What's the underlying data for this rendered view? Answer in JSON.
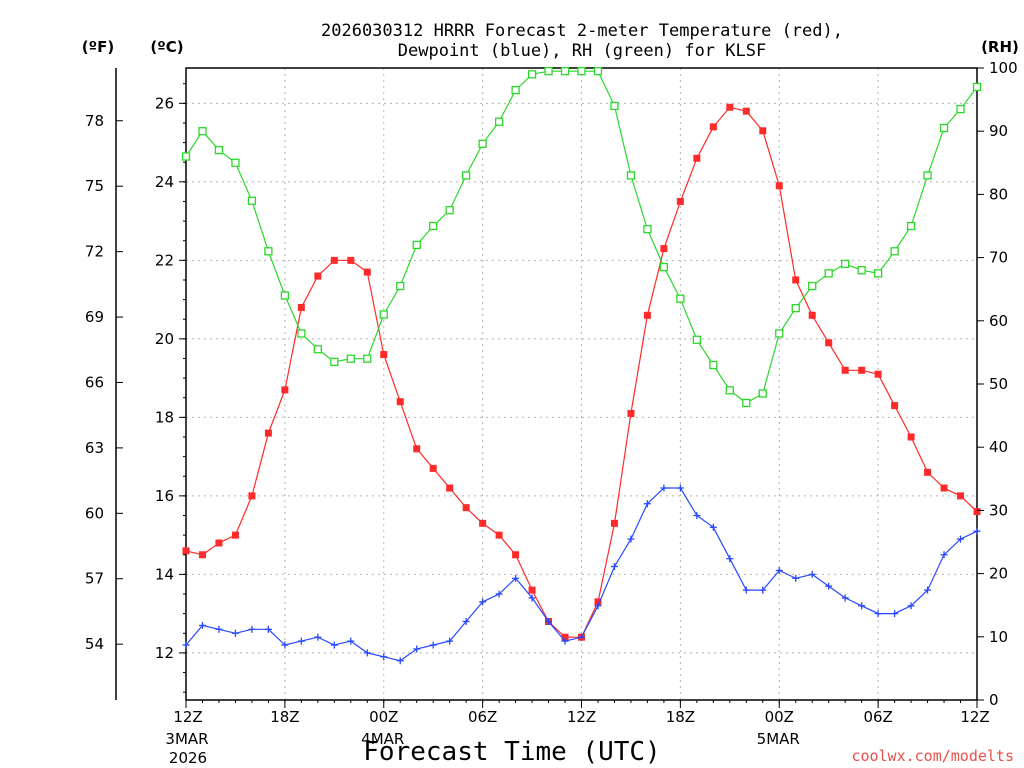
{
  "chart_data": {
    "type": "line",
    "title": "2026030312 HRRR Forecast 2-meter Temperature (red),",
    "subtitle": "Dewpoint (blue), RH (green) for KLSF",
    "xlabel": "Forecast Time (UTC)",
    "credit": "coolwx.com/modelts",
    "units": {
      "fahrenheit": "(ºF)",
      "celsius": "(ºC)",
      "rh": "(RH)"
    },
    "x_hours_range": [
      0,
      48
    ],
    "y_celsius_range": [
      10.8,
      26.9
    ],
    "y_rh_range": [
      0,
      100
    ],
    "x_ticks": [
      {
        "hour": 0,
        "label": "12Z",
        "date": "3MAR",
        "year": "2026"
      },
      {
        "hour": 6,
        "label": "18Z"
      },
      {
        "hour": 12,
        "label": "00Z",
        "date": "4MAR"
      },
      {
        "hour": 18,
        "label": "06Z"
      },
      {
        "hour": 24,
        "label": "12Z"
      },
      {
        "hour": 30,
        "label": "18Z"
      },
      {
        "hour": 36,
        "label": "00Z",
        "date": "5MAR"
      },
      {
        "hour": 42,
        "label": "06Z"
      },
      {
        "hour": 48,
        "label": "12Z"
      }
    ],
    "celsius_ticks": [
      "12",
      "14",
      "16",
      "18",
      "20",
      "22",
      "24",
      "26"
    ],
    "fahrenheit_ticks": [
      "54",
      "57",
      "60",
      "63",
      "66",
      "69",
      "72",
      "75",
      "78"
    ],
    "rh_ticks": [
      "0",
      "10",
      "20",
      "30",
      "40",
      "50",
      "60",
      "70",
      "80",
      "90",
      "100"
    ],
    "series": [
      {
        "name": "Temperature (°C)",
        "color": "#ff2a2a",
        "marker": "filled-square",
        "axis": "celsius",
        "values": [
          14.6,
          14.5,
          14.8,
          15.0,
          16.0,
          17.6,
          18.7,
          20.8,
          21.6,
          22.0,
          22.0,
          21.7,
          19.6,
          18.4,
          17.2,
          16.7,
          16.2,
          15.7,
          15.3,
          15.0,
          14.5,
          13.6,
          12.8,
          12.4,
          12.4,
          13.3,
          15.3,
          18.1,
          20.6,
          22.3,
          23.5,
          24.6,
          25.4,
          25.9,
          25.8,
          25.3,
          23.9,
          21.5,
          20.6,
          19.9,
          19.2,
          19.2,
          19.1,
          18.3,
          17.5,
          16.6,
          16.2,
          16.0,
          15.6
        ]
      },
      {
        "name": "Dewpoint (°C)",
        "color": "#2848ff",
        "marker": "plus",
        "axis": "celsius",
        "values": [
          12.2,
          12.7,
          12.6,
          12.5,
          12.6,
          12.6,
          12.2,
          12.3,
          12.4,
          12.2,
          12.3,
          12.0,
          11.9,
          11.8,
          12.1,
          12.2,
          12.3,
          12.8,
          13.3,
          13.5,
          13.9,
          13.4,
          12.8,
          12.3,
          12.4,
          13.2,
          14.2,
          14.9,
          15.8,
          16.2,
          16.2,
          15.5,
          15.2,
          14.4,
          13.6,
          13.6,
          14.1,
          13.9,
          14.0,
          13.7,
          13.4,
          13.2,
          13.0,
          13.0,
          13.2,
          13.6,
          14.5,
          14.9,
          15.1
        ]
      },
      {
        "name": "RH (%)",
        "color": "#2ad82a",
        "marker": "open-square",
        "axis": "rh",
        "values": [
          86,
          90,
          87,
          85,
          79,
          71,
          64,
          58,
          55.5,
          53.5,
          54,
          54,
          61,
          65.5,
          72,
          75,
          77.5,
          83,
          88,
          91.5,
          96.5,
          99,
          99.5,
          99.5,
          99.5,
          99.5,
          94,
          83,
          74.5,
          68.5,
          63.5,
          57,
          53,
          49,
          47,
          48.5,
          58,
          62,
          65.5,
          67.5,
          69,
          68,
          67.5,
          71,
          75,
          83,
          90.5,
          93.5,
          97
        ]
      }
    ]
  }
}
